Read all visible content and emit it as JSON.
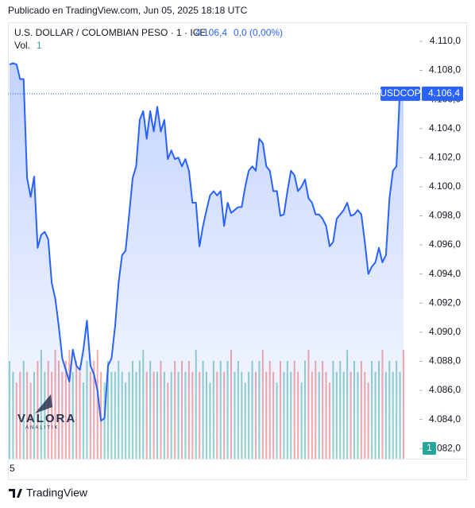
{
  "published": "Publicado en TradingView.com, Jun 05, 2025 18:18 UTC",
  "chart_data": {
    "type": "area",
    "title": "U.S. DOLLAR / COLOMBIAN PESO · 1 · ICE",
    "last_label": "4.106,4",
    "change_label": "0,0 (0,00%)",
    "volume_label": "Vol.",
    "symbol": "USDCOP",
    "xtick": "5",
    "color": "#2962ff",
    "up_color": "#26a69a",
    "down_color": "#ef5350",
    "grid": false,
    "ylim": [
      4081.3,
      4111.2
    ],
    "yticks": [
      {
        "value": 4110,
        "label": "4.110,0"
      },
      {
        "value": 4108,
        "label": "4.108,0"
      },
      {
        "value": 4106,
        "label": "4.106,0"
      },
      {
        "value": 4104,
        "label": "4.104,0"
      },
      {
        "value": 4102,
        "label": "4.102,0"
      },
      {
        "value": 4100,
        "label": "4.100,0"
      },
      {
        "value": 4098,
        "label": "4.098,0"
      },
      {
        "value": 4096,
        "label": "4.096,0"
      },
      {
        "value": 4094,
        "label": "4.094,0"
      },
      {
        "value": 4092,
        "label": "4.092,0"
      },
      {
        "value": 4090,
        "label": "4.090,0"
      },
      {
        "value": 4088,
        "label": "4.088,0"
      },
      {
        "value": 4086,
        "label": "4.086,0"
      },
      {
        "value": 4084,
        "label": "4.084,0"
      },
      {
        "value": 4082,
        "label": "4.082,0"
      }
    ],
    "values": [
      4108.4,
      4108.5,
      4108.4,
      4107.4,
      4107.4,
      4100.6,
      4099.3,
      4100.7,
      4095.8,
      4096.7,
      4096.9,
      4096.4,
      4093.4,
      4092.3,
      4090.4,
      4088.2,
      4087.4,
      4086.6,
      4088.8,
      4087.7,
      4087.4,
      4088.8,
      4090.8,
      4087.7,
      4087.1,
      4086.0,
      4083.9,
      4084.1,
      4087.7,
      4088.2,
      4090.4,
      4093.4,
      4095.3,
      4095.6,
      4098.1,
      4100.6,
      4101.4,
      4104.6,
      4105.2,
      4103.3,
      4105.2,
      4103.8,
      4105.5,
      4103.8,
      4104.6,
      4101.9,
      4102.5,
      4101.9,
      4102.0,
      4101.4,
      4101.9,
      4101.1,
      4098.9,
      4098.9,
      4095.9,
      4097.3,
      4098.4,
      4099.4,
      4099.7,
      4099.4,
      4099.7,
      4097.3,
      4098.9,
      4098.2,
      4098.4,
      4098.6,
      4098.6,
      4100.0,
      4101.1,
      4101.4,
      4101.1,
      4103.3,
      4103.0,
      4101.4,
      4101.1,
      4099.7,
      4099.7,
      4098.0,
      4098.1,
      4099.7,
      4101.1,
      4100.8,
      4099.7,
      4100.0,
      4100.5,
      4099.2,
      4098.9,
      4098.1,
      4098.1,
      4097.8,
      4097.3,
      4095.9,
      4096.2,
      4097.8,
      4098.1,
      4098.4,
      4098.9,
      4098.0,
      4098.1,
      4098.4,
      4098.1,
      4096.2,
      4094.0,
      4094.5,
      4094.8,
      4095.8,
      4094.8,
      4095.3,
      4099.2,
      4101.1,
      4101.4,
      4106.8,
      4106.4
    ],
    "volume_ylim": [
      0,
      4
    ],
    "volume": [
      0.9,
      0.8,
      0.7,
      0.8,
      0.9,
      0.8,
      0.7,
      0.8,
      0.9,
      1.0,
      0.8,
      0.9,
      0.8,
      1.0,
      0.9,
      0.8,
      0.9,
      1.0,
      0.8,
      0.9,
      0.8,
      0.7,
      0.9,
      0.8,
      0.9,
      1.0,
      0.8,
      0.7,
      0.9,
      0.8,
      0.8,
      0.9,
      0.8,
      0.7,
      0.8,
      0.9,
      0.8,
      0.9,
      1.0,
      0.8,
      0.9,
      0.8,
      0.8,
      0.9,
      0.8,
      0.7,
      0.8,
      0.9,
      0.8,
      0.9,
      0.8,
      0.9,
      0.8,
      1.0,
      0.8,
      0.9,
      0.8,
      0.7,
      0.9,
      0.8,
      0.9,
      0.8,
      0.9,
      1.0,
      0.8,
      0.9,
      0.8,
      0.7,
      0.8,
      0.9,
      0.8,
      0.9,
      1.0,
      0.8,
      0.9,
      0.8,
      0.7,
      0.9,
      0.8,
      0.9,
      0.8,
      0.9,
      0.8,
      0.7,
      0.9,
      1.0,
      0.8,
      0.9,
      0.8,
      0.9,
      0.8,
      0.7,
      0.9,
      0.8,
      0.9,
      0.8,
      1.0,
      0.8,
      0.9,
      0.8,
      0.9,
      0.8,
      0.7,
      0.9,
      0.8,
      0.9,
      1.0,
      0.8,
      0.9,
      0.8,
      0.9,
      0.8,
      1
    ],
    "watermark_title": "VALORA",
    "watermark_subtitle": "ANALITIK"
  },
  "footer": "TradingView"
}
